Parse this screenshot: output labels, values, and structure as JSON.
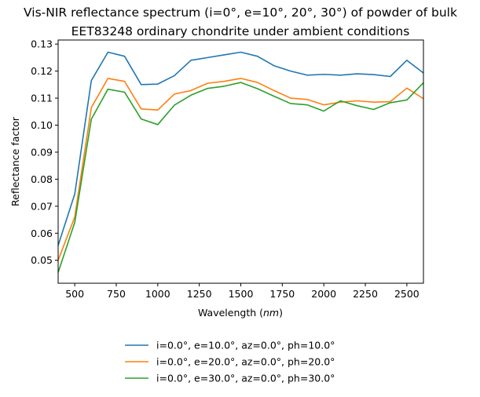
{
  "chart_data": {
    "type": "line",
    "title_lines": [
      "Vis-NIR reflectance spectrum (i=0°, e=10°, 20°, 30°) of powder of bulk",
      "EET83248 ordinary chondrite under ambient conditions"
    ],
    "xlabel": "Wavelength (nm)",
    "xlabel_prefix": "Wavelength (",
    "xlabel_unit": "nm",
    "xlabel_suffix": ")",
    "ylabel": "Reflectance factor",
    "xlim": [
      400,
      2600
    ],
    "ylim": [
      0.0415,
      0.1315
    ],
    "xticks": [
      500,
      750,
      1000,
      1250,
      1500,
      1750,
      2000,
      2250,
      2500
    ],
    "yticks": [
      0.05,
      0.06,
      0.07,
      0.08,
      0.09,
      0.1,
      0.11,
      0.12,
      0.13
    ],
    "ytick_labels": [
      "0.05",
      "0.06",
      "0.07",
      "0.08",
      "0.09",
      "0.10",
      "0.11",
      "0.12",
      "0.13"
    ],
    "grid": false,
    "legend_position": "below the plot",
    "x": [
      400,
      500,
      600,
      700,
      800,
      900,
      1000,
      1100,
      1200,
      1300,
      1400,
      1500,
      1600,
      1700,
      1800,
      1900,
      2000,
      2100,
      2200,
      2300,
      2400,
      2500,
      2600
    ],
    "series": [
      {
        "name": "i=0.0°, e=10.0°, az=0.0°, ph=10.0°",
        "color": "#1f77b4",
        "values": [
          0.0555,
          0.0745,
          0.1165,
          0.127,
          0.1255,
          0.115,
          0.1152,
          0.1183,
          0.124,
          0.125,
          0.126,
          0.127,
          0.1255,
          0.122,
          0.12,
          0.1185,
          0.1188,
          0.1185,
          0.119,
          0.1187,
          0.118,
          0.124,
          0.1193
        ]
      },
      {
        "name": "i=0.0°, e=20.0°, az=0.0°, ph=20.0°",
        "color": "#ff7f0e",
        "values": [
          0.05,
          0.066,
          0.1065,
          0.1173,
          0.1162,
          0.106,
          0.1056,
          0.1115,
          0.1128,
          0.1155,
          0.1162,
          0.1173,
          0.1158,
          0.1128,
          0.11,
          0.1095,
          0.1075,
          0.1085,
          0.109,
          0.1085,
          0.1087,
          0.1137,
          0.1098
        ]
      },
      {
        "name": "i=0.0°, e=30.0°, az=0.0°, ph=30.0°",
        "color": "#2ca02c",
        "values": [
          0.0455,
          0.064,
          0.1022,
          0.1133,
          0.1122,
          0.1023,
          0.1002,
          0.1074,
          0.1111,
          0.1136,
          0.1144,
          0.1158,
          0.1135,
          0.1107,
          0.108,
          0.1075,
          0.1052,
          0.109,
          0.1072,
          0.1058,
          0.1083,
          0.1093,
          0.1157
        ]
      }
    ]
  }
}
